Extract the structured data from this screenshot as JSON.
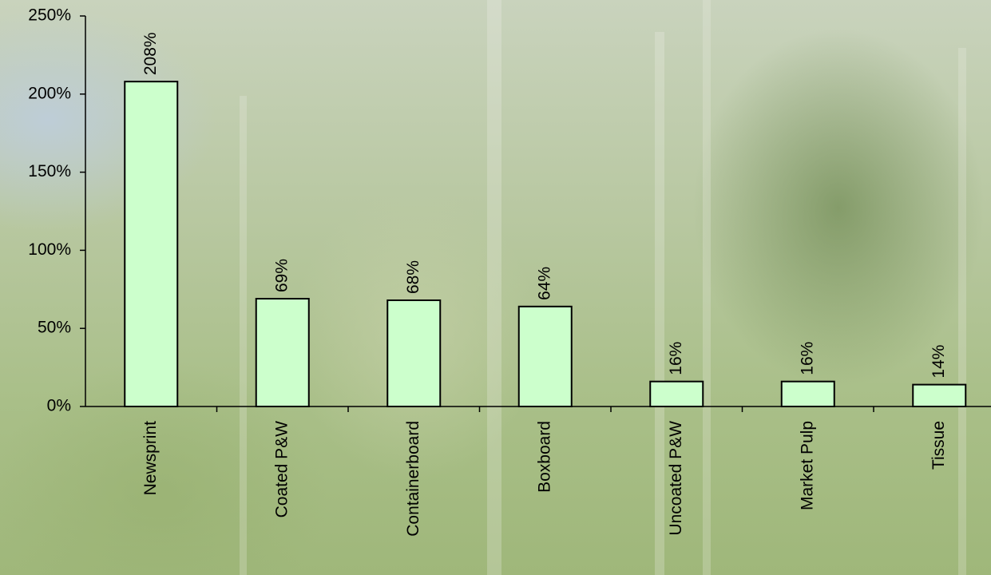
{
  "chart_data": {
    "type": "bar",
    "categories": [
      "Newsprint",
      "Coated P&W",
      "Containerboard",
      "Boxboard",
      "Uncoated P&W",
      "Market Pulp",
      "Tissue"
    ],
    "values": [
      208,
      69,
      68,
      64,
      16,
      16,
      14
    ],
    "value_labels": [
      "208%",
      "69%",
      "68%",
      "64%",
      "16%",
      "16%",
      "14%"
    ],
    "color": "#ccffcc",
    "ylim": [
      0,
      250
    ],
    "yticks": [
      {
        "value": 0,
        "label": "0%"
      },
      {
        "value": 50,
        "label": "50%"
      },
      {
        "value": 100,
        "label": "100%"
      },
      {
        "value": 150,
        "label": "150%"
      },
      {
        "value": 200,
        "label": "200%"
      },
      {
        "value": 250,
        "label": "250%"
      }
    ]
  }
}
